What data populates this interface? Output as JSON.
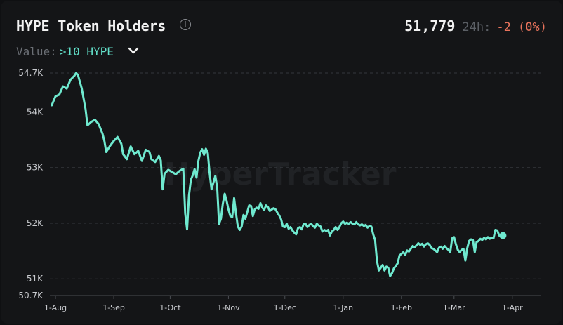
{
  "header": {
    "title": "HYPE Token Holders",
    "holders": "51,779",
    "label_24h": "24h:",
    "delta": "-2 (0%)"
  },
  "filter": {
    "label": "Value:",
    "selected": ">10 HYPE"
  },
  "watermark": "HyperTracker",
  "colors": {
    "line": "#6fe9cf",
    "accent": "#62e0c9",
    "negative": "#e8735c",
    "background": "#141517"
  },
  "icons": [
    "info-icon",
    "chevron-down-icon"
  ],
  "chart_data": {
    "type": "line",
    "title": "HYPE Token Holders",
    "xlabel": "",
    "ylabel": "",
    "ylim": [
      50700,
      54700
    ],
    "yticks": [
      {
        "label": "54.7K",
        "value": 54700
      },
      {
        "label": "54K",
        "value": 54000
      },
      {
        "label": "53K",
        "value": 53000
      },
      {
        "label": "52K",
        "value": 52000
      },
      {
        "label": "51K",
        "value": 51000
      },
      {
        "label": "50.7K",
        "value": 50700
      }
    ],
    "xticks": [
      {
        "label": "1-Aug",
        "day": 31
      },
      {
        "label": "1-Sep",
        "day": 62
      },
      {
        "label": "1-Oct",
        "day": 92
      },
      {
        "label": "1-Nov",
        "day": 123
      },
      {
        "label": "1-Dec",
        "day": 153
      },
      {
        "label": "1-Jan",
        "day": 184
      },
      {
        "label": "1-Feb",
        "day": 215
      },
      {
        "label": "1-Mar",
        "day": 243
      },
      {
        "label": "1-Apr",
        "day": 274
      }
    ],
    "xlim": [
      28,
      289
    ],
    "grid": true,
    "series": [
      {
        "values": [
          [
            29,
            54120
          ],
          [
            31,
            54280
          ],
          [
            33,
            54310
          ],
          [
            35,
            54460
          ],
          [
            37,
            54420
          ],
          [
            39,
            54580
          ],
          [
            41,
            54650
          ],
          [
            42,
            54700
          ],
          [
            43,
            54660
          ],
          [
            45,
            54420
          ],
          [
            47,
            54050
          ],
          [
            48,
            53760
          ],
          [
            50,
            53820
          ],
          [
            52,
            53860
          ],
          [
            54,
            53780
          ],
          [
            56,
            53610
          ],
          [
            57,
            53480
          ],
          [
            58,
            53280
          ],
          [
            60,
            53390
          ],
          [
            62,
            53480
          ],
          [
            64,
            53550
          ],
          [
            66,
            53430
          ],
          [
            67,
            53240
          ],
          [
            69,
            53150
          ],
          [
            71,
            53380
          ],
          [
            73,
            53240
          ],
          [
            75,
            53300
          ],
          [
            77,
            53120
          ],
          [
            79,
            53320
          ],
          [
            81,
            53280
          ],
          [
            82,
            53150
          ],
          [
            84,
            53100
          ],
          [
            86,
            53210
          ],
          [
            87,
            53130
          ],
          [
            88,
            52610
          ],
          [
            89,
            52890
          ],
          [
            91,
            52960
          ],
          [
            93,
            52920
          ],
          [
            95,
            52880
          ],
          [
            97,
            52940
          ],
          [
            99,
            52980
          ],
          [
            100,
            52180
          ],
          [
            101,
            51890
          ],
          [
            102,
            52500
          ],
          [
            103,
            52780
          ],
          [
            104,
            52860
          ],
          [
            105,
            52970
          ],
          [
            106,
            52820
          ],
          [
            107,
            53120
          ],
          [
            108,
            53270
          ],
          [
            109,
            53330
          ],
          [
            110,
            53230
          ],
          [
            111,
            53340
          ],
          [
            112,
            53260
          ],
          [
            113,
            52900
          ],
          [
            114,
            52610
          ],
          [
            115,
            52730
          ],
          [
            116,
            52850
          ],
          [
            117,
            52640
          ],
          [
            118,
            51990
          ],
          [
            119,
            52080
          ],
          [
            120,
            52350
          ],
          [
            121,
            52530
          ],
          [
            122,
            52410
          ],
          [
            123,
            52250
          ],
          [
            124,
            52130
          ],
          [
            125,
            52110
          ],
          [
            126,
            52450
          ],
          [
            127,
            52180
          ],
          [
            128,
            51940
          ],
          [
            129,
            51880
          ],
          [
            130,
            51940
          ],
          [
            131,
            52150
          ],
          [
            132,
            52080
          ],
          [
            133,
            52200
          ],
          [
            134,
            52320
          ],
          [
            135,
            52310
          ],
          [
            136,
            52130
          ],
          [
            137,
            52250
          ],
          [
            138,
            52280
          ],
          [
            139,
            52260
          ],
          [
            140,
            52360
          ],
          [
            141,
            52280
          ],
          [
            142,
            52240
          ],
          [
            143,
            52320
          ],
          [
            144,
            52290
          ],
          [
            145,
            52220
          ],
          [
            147,
            52270
          ],
          [
            148,
            52250
          ],
          [
            149,
            52190
          ],
          [
            150,
            52140
          ],
          [
            151,
            52070
          ],
          [
            152,
            51940
          ],
          [
            153,
            51930
          ],
          [
            154,
            51990
          ],
          [
            155,
            51900
          ],
          [
            156,
            51930
          ],
          [
            157,
            51870
          ],
          [
            158,
            51830
          ],
          [
            159,
            51800
          ],
          [
            160,
            51910
          ],
          [
            161,
            51930
          ],
          [
            162,
            51890
          ],
          [
            163,
            51990
          ],
          [
            164,
            51990
          ],
          [
            165,
            51930
          ],
          [
            166,
            51970
          ],
          [
            167,
            51990
          ],
          [
            168,
            51950
          ],
          [
            169,
            51920
          ],
          [
            170,
            51990
          ],
          [
            171,
            51960
          ],
          [
            172,
            51940
          ],
          [
            173,
            51850
          ],
          [
            174,
            51880
          ],
          [
            175,
            51860
          ],
          [
            176,
            51880
          ],
          [
            177,
            51780
          ],
          [
            178,
            51850
          ],
          [
            179,
            51880
          ],
          [
            180,
            51930
          ],
          [
            181,
            51880
          ],
          [
            182,
            51930
          ],
          [
            183,
            52000
          ],
          [
            184,
            52030
          ],
          [
            185,
            51990
          ],
          [
            186,
            52010
          ],
          [
            187,
            51990
          ],
          [
            188,
            52020
          ],
          [
            189,
            51990
          ],
          [
            190,
            51980
          ],
          [
            191,
            52020
          ],
          [
            192,
            51980
          ],
          [
            193,
            51960
          ],
          [
            194,
            51980
          ],
          [
            195,
            51950
          ],
          [
            196,
            51970
          ],
          [
            197,
            51920
          ],
          [
            198,
            51950
          ],
          [
            199,
            51940
          ],
          [
            200,
            51800
          ],
          [
            201,
            51700
          ],
          [
            202,
            51320
          ],
          [
            203,
            51150
          ],
          [
            204,
            51200
          ],
          [
            205,
            51250
          ],
          [
            206,
            51150
          ],
          [
            207,
            51220
          ],
          [
            208,
            51200
          ],
          [
            209,
            51050
          ],
          [
            210,
            51100
          ],
          [
            211,
            51190
          ],
          [
            212,
            51230
          ],
          [
            213,
            51280
          ],
          [
            214,
            51420
          ],
          [
            215,
            51450
          ],
          [
            216,
            51480
          ],
          [
            217,
            51430
          ],
          [
            218,
            51510
          ],
          [
            219,
            51490
          ],
          [
            220,
            51540
          ],
          [
            221,
            51590
          ],
          [
            222,
            51570
          ],
          [
            223,
            51600
          ],
          [
            224,
            51640
          ],
          [
            225,
            51610
          ],
          [
            226,
            51630
          ],
          [
            227,
            51580
          ],
          [
            228,
            51620
          ],
          [
            229,
            51640
          ],
          [
            230,
            51610
          ],
          [
            231,
            51550
          ],
          [
            232,
            51540
          ],
          [
            233,
            51510
          ],
          [
            234,
            51480
          ],
          [
            235,
            51560
          ],
          [
            236,
            51580
          ],
          [
            237,
            51540
          ],
          [
            238,
            51590
          ],
          [
            239,
            51550
          ],
          [
            240,
            51520
          ],
          [
            241,
            51480
          ],
          [
            242,
            51730
          ],
          [
            243,
            51750
          ],
          [
            244,
            51620
          ],
          [
            245,
            51520
          ],
          [
            246,
            51480
          ],
          [
            247,
            51520
          ],
          [
            248,
            51540
          ],
          [
            249,
            51330
          ],
          [
            250,
            51550
          ],
          [
            251,
            51680
          ],
          [
            252,
            51710
          ],
          [
            253,
            51700
          ],
          [
            254,
            51480
          ],
          [
            255,
            51660
          ],
          [
            256,
            51680
          ],
          [
            257,
            51720
          ],
          [
            258,
            51700
          ],
          [
            259,
            51740
          ],
          [
            260,
            51710
          ],
          [
            261,
            51750
          ],
          [
            262,
            51720
          ],
          [
            263,
            51740
          ],
          [
            264,
            51730
          ],
          [
            265,
            51880
          ],
          [
            266,
            51870
          ],
          [
            267,
            51780
          ],
          [
            268,
            51750
          ],
          [
            269,
            51779
          ]
        ]
      }
    ]
  }
}
